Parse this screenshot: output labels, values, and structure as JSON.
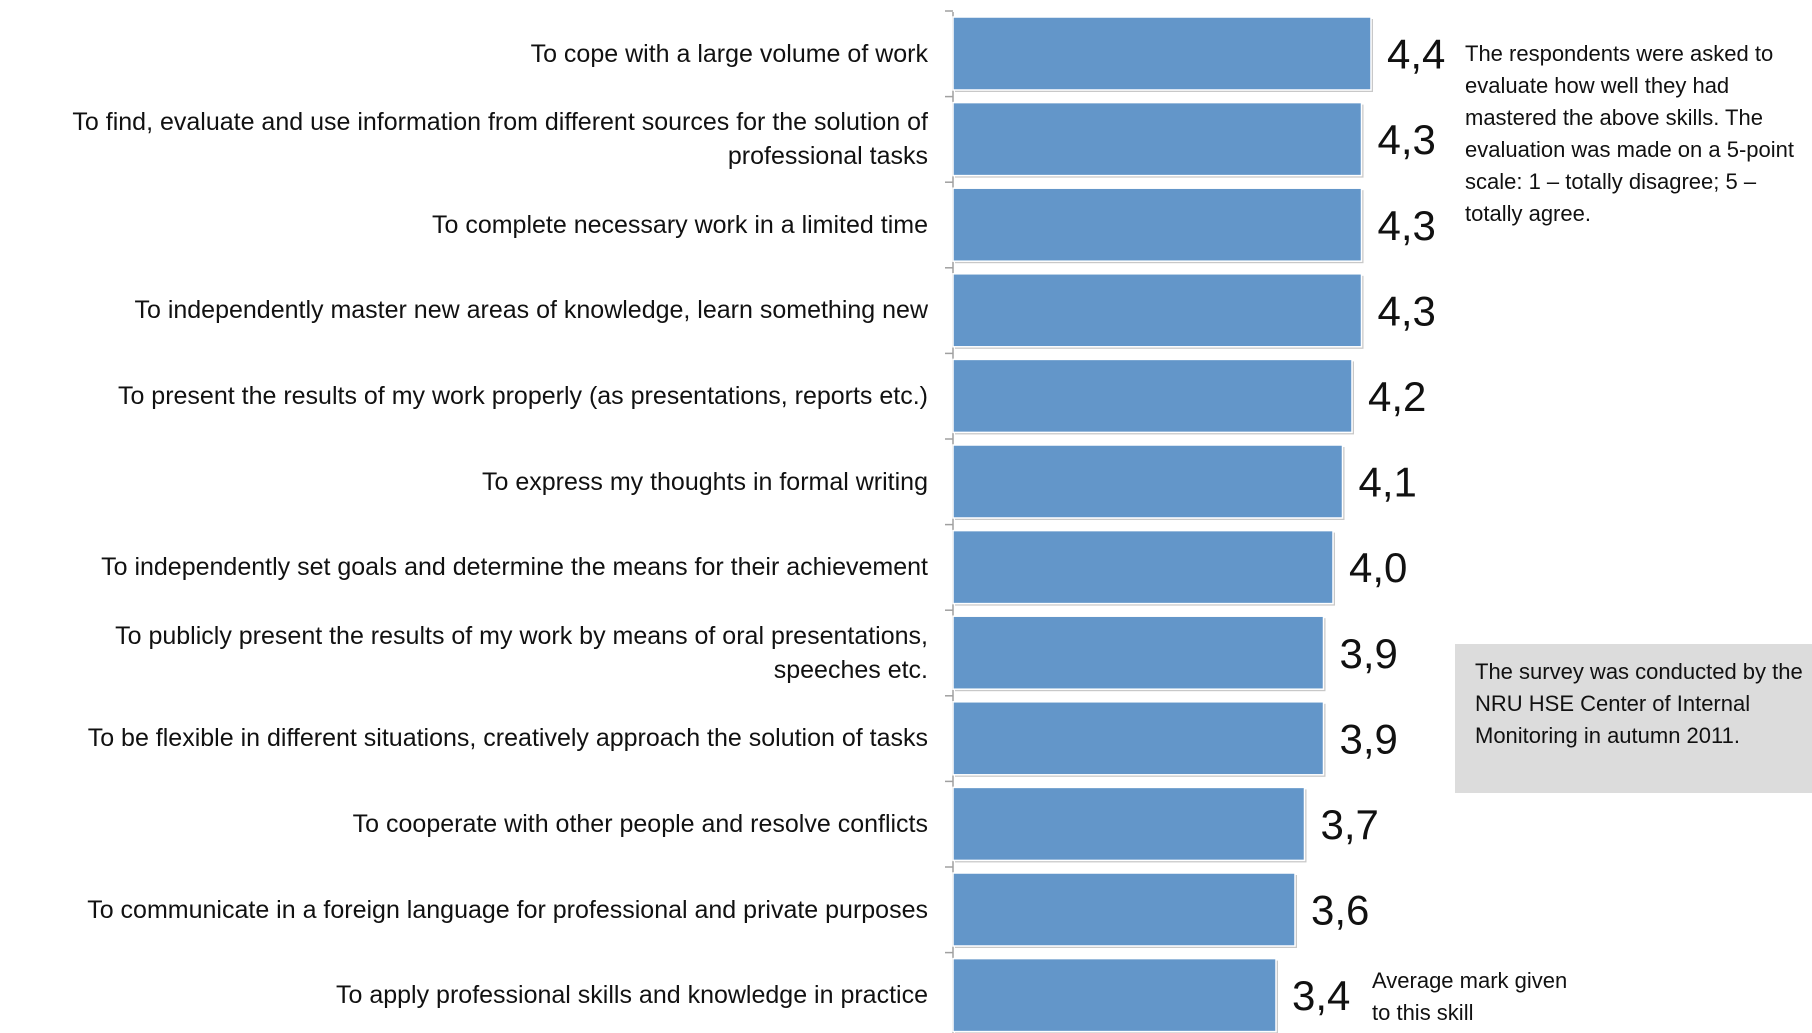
{
  "chart_data": {
    "type": "bar",
    "orientation": "horizontal",
    "categories": [
      "To cope with a large volume of work",
      "To find, evaluate and use information from different sources for the solution of professional tasks",
      "To complete necessary work in a limited time",
      "To independently master new areas of knowledge, learn something new",
      "To present the results of my work properly (as presentations, reports etc.)",
      "To express my thoughts in formal writing",
      "To independently set goals and determine the means for their achievement",
      "To publicly present the results of my work by means of oral presentations, speeches etc.",
      "To be flexible in different situations, creatively approach the solution of tasks",
      "To cooperate with other people and resolve conflicts",
      "To communicate in a foreign language for professional and private purposes",
      "To apply professional skills and knowledge in practice"
    ],
    "values": [
      4.4,
      4.3,
      4.3,
      4.3,
      4.2,
      4.1,
      4.0,
      3.9,
      3.9,
      3.7,
      3.6,
      3.4
    ],
    "value_labels": [
      "4,4",
      "4,3",
      "4,3",
      "4,3",
      "4,2",
      "4,1",
      "4,0",
      "3,9",
      "3,9",
      "3,7",
      "3,6",
      "3,4"
    ],
    "color": "#6396c9",
    "xlim": [
      0,
      5
    ],
    "annotations": [
      "The respondents were asked to evaluate how well they had mastered the above skills. The evaluation was made on a 5-point scale: 1 – totally disagree; 5 – totally agree.",
      "The survey was conducted by the NRU HSE Center of Internal Monitoring in autumn 2011.",
      "Average mark given to this skill"
    ]
  }
}
